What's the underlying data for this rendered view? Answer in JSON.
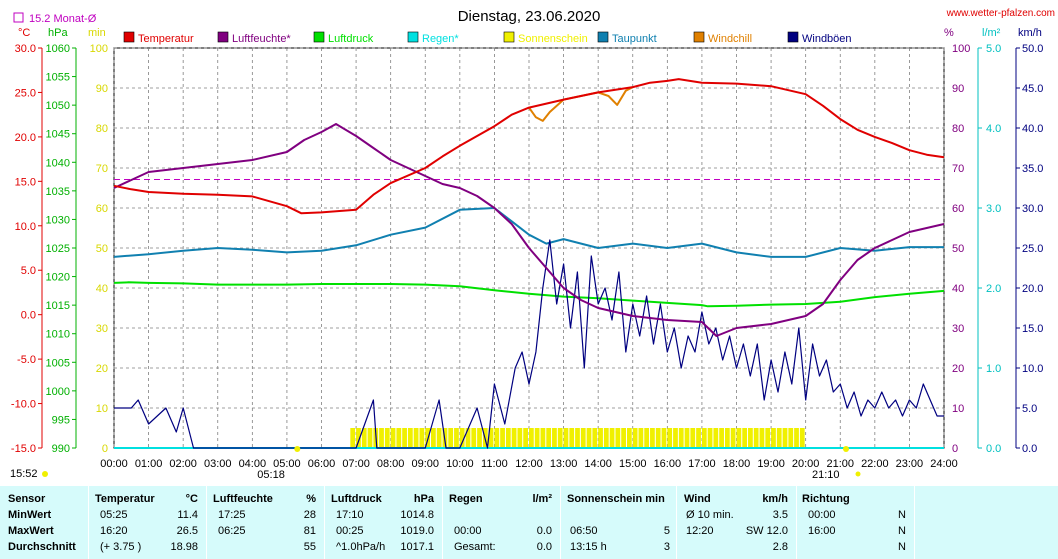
{
  "header": {
    "title": "Dienstag, 23.06.2020",
    "website": "www.wetter-pfalzen.com",
    "monthly_avg_label": "15.2 Monat-Ø",
    "unit_c": "°C",
    "unit_hpa": "hPa",
    "unit_min": "min",
    "unit_pct": "%",
    "unit_lm2": "l/m²",
    "unit_kmh": "km/h"
  },
  "legend": [
    {
      "label": "Temperatur",
      "color": "#e00000"
    },
    {
      "label": "Luftfeuchte*",
      "color": "#800080"
    },
    {
      "label": "Luftdruck",
      "color": "#00e000"
    },
    {
      "label": "Regen*",
      "color": "#00e0e0"
    },
    {
      "label": "Sonnenschein",
      "color": "#f0f000"
    },
    {
      "label": "Taupunkt",
      "color": "#1080b0"
    },
    {
      "label": "Windchill",
      "color": "#e08000"
    },
    {
      "label": "Windböen",
      "color": "#000080"
    }
  ],
  "axis_labels": {
    "temp": [
      "30.0",
      "25.0",
      "20.0",
      "15.0",
      "10.0",
      "5.0",
      "0.0",
      "-5.0",
      "-10.0",
      "-15.0"
    ],
    "press": [
      "1060",
      "1055",
      "1050",
      "1045",
      "1040",
      "1035",
      "1030",
      "1025",
      "1020",
      "1015",
      "1010",
      "1005",
      "1000",
      "995",
      "990"
    ],
    "sun": [
      "100",
      "90",
      "80",
      "70",
      "60",
      "50",
      "40",
      "30",
      "20",
      "10",
      "0"
    ],
    "hum": [
      "100",
      "90",
      "80",
      "70",
      "60",
      "50",
      "40",
      "30",
      "20",
      "10",
      "0"
    ],
    "rain": [
      "5.0",
      "4.0",
      "3.0",
      "2.0",
      "1.0",
      "0.0"
    ],
    "wind": [
      "50.0",
      "45.0",
      "40.0",
      "35.0",
      "30.0",
      "25.0",
      "20.0",
      "15.0",
      "10.0",
      "5.0",
      "0.0"
    ],
    "time": [
      "00:00",
      "01:00",
      "02:00",
      "03:00",
      "04:00",
      "05:00",
      "06:00",
      "07:00",
      "08:00",
      "09:00",
      "10:00",
      "11:00",
      "12:00",
      "13:00",
      "14:00",
      "15:00",
      "16:00",
      "17:00",
      "18:00",
      "19:00",
      "20:00",
      "21:00",
      "22:00",
      "23:00",
      "24:00"
    ]
  },
  "markers": {
    "now_time": "15:52",
    "sunrise": "05:18",
    "sunset": "21:10"
  },
  "stats": {
    "headers": {
      "sensor": "Sensor",
      "temperatur": "Temperatur",
      "temp_unit": "°C",
      "luftfeuchte": "Luftfeuchte",
      "hum_unit": "%",
      "luftdruck": "Luftdruck",
      "press_unit": "hPa",
      "regen": "Regen",
      "rain_unit": "l/m²",
      "sonnenschein": "Sonnenschein min",
      "wind": "Wind",
      "wind_unit": "km/h",
      "richtung": "Richtung"
    },
    "rows": [
      {
        "label": "MinWert",
        "t_time": "05:25",
        "t_val": "11.4",
        "h_time": "17:25",
        "h_val": "28",
        "p_time": "17:10",
        "p_val": "1014.8",
        "r_time": "",
        "r_val": "",
        "s_time": "",
        "s_val": "",
        "w_time": "Ø 10 min.",
        "w_val": "3.5",
        "d_time": "00:00",
        "d_val": "N"
      },
      {
        "label": "MaxWert",
        "t_time": "16:20",
        "t_val": "26.5",
        "h_time": "06:25",
        "h_val": "81",
        "p_time": "00:25",
        "p_val": "1019.0",
        "r_time": "00:00",
        "r_val": "0.0",
        "s_time": "06:50",
        "s_val": "5",
        "w_time": "12:20",
        "w_val": "SW 12.0",
        "d_time": "16:00",
        "d_val": "N"
      },
      {
        "label": "Durchschnitt",
        "t_time": "(+ 3.75 )",
        "t_val": "18.98",
        "h_time": "",
        "h_val": "55",
        "p_time": "^1.0hPa/h",
        "p_val": "1017.1",
        "r_time": "Gesamt:",
        "r_val": "0.0",
        "s_time": "13:15 h",
        "s_val": "3",
        "w_time": "",
        "w_val": "2.8",
        "d_time": "",
        "d_val": "N"
      }
    ]
  },
  "chart_data": {
    "type": "line",
    "title": "Dienstag, 23.06.2020",
    "x_range": [
      "00:00",
      "24:00"
    ],
    "axes": {
      "temperature_c": [
        -15,
        30
      ],
      "pressure_hpa": [
        990,
        1060
      ],
      "sunshine_min": [
        0,
        100
      ],
      "humidity_pct": [
        0,
        100
      ],
      "rain_lm2": [
        0,
        5
      ],
      "wind_kmh": [
        0,
        50
      ]
    },
    "reference_lines": [
      {
        "name": "15.2 Monat-Ø",
        "axis": "temperature_c",
        "value": 15.2,
        "style": "dashed",
        "color": "#c000c0"
      }
    ],
    "series": [
      {
        "name": "Temperatur",
        "axis": "temperature_c",
        "color": "#e00000",
        "points": [
          [
            0,
            14.5
          ],
          [
            0.5,
            14.1
          ],
          [
            1,
            13.8
          ],
          [
            2,
            13.6
          ],
          [
            3,
            13.5
          ],
          [
            4,
            13.3
          ],
          [
            5,
            12.2
          ],
          [
            5.42,
            11.4
          ],
          [
            6,
            11.5
          ],
          [
            7,
            11.8
          ],
          [
            7.5,
            13.5
          ],
          [
            8,
            14.8
          ],
          [
            9,
            16.5
          ],
          [
            9.5,
            17.8
          ],
          [
            10,
            19
          ],
          [
            11,
            21.2
          ],
          [
            11.5,
            22.5
          ],
          [
            12,
            23.3
          ],
          [
            13,
            24.2
          ],
          [
            14,
            25
          ],
          [
            15,
            25.6
          ],
          [
            15.5,
            26.1
          ],
          [
            16,
            26.3
          ],
          [
            16.33,
            26.5
          ],
          [
            17,
            26.1
          ],
          [
            18,
            26
          ],
          [
            19,
            25.7
          ],
          [
            20,
            24.8
          ],
          [
            20.5,
            23.5
          ],
          [
            21,
            22
          ],
          [
            21.5,
            20.8
          ],
          [
            22,
            20
          ],
          [
            22.5,
            19.3
          ],
          [
            23,
            18.5
          ],
          [
            23.5,
            18
          ],
          [
            24,
            17.7
          ]
        ]
      },
      {
        "name": "Luftfeuchte*",
        "axis": "humidity_pct",
        "color": "#800080",
        "points": [
          [
            0,
            65
          ],
          [
            0.5,
            67
          ],
          [
            1,
            69
          ],
          [
            2,
            70
          ],
          [
            3,
            71
          ],
          [
            4,
            72
          ],
          [
            5,
            74
          ],
          [
            5.5,
            77
          ],
          [
            6,
            79
          ],
          [
            6.42,
            81
          ],
          [
            7,
            78
          ],
          [
            7.5,
            75
          ],
          [
            8,
            72
          ],
          [
            9,
            68
          ],
          [
            9.5,
            66
          ],
          [
            10,
            65
          ],
          [
            10.5,
            63
          ],
          [
            11,
            60
          ],
          [
            11.5,
            56
          ],
          [
            12,
            50
          ],
          [
            12.5,
            45
          ],
          [
            13,
            40
          ],
          [
            13.5,
            37
          ],
          [
            14,
            35
          ],
          [
            14.5,
            34
          ],
          [
            15,
            33
          ],
          [
            16,
            32
          ],
          [
            17,
            31.5
          ],
          [
            17.42,
            28
          ],
          [
            18,
            30
          ],
          [
            19,
            31
          ],
          [
            19.5,
            32
          ],
          [
            20,
            33
          ],
          [
            20.5,
            36
          ],
          [
            21,
            42
          ],
          [
            21.5,
            47
          ],
          [
            22,
            50
          ],
          [
            22.5,
            52
          ],
          [
            23,
            54
          ],
          [
            23.5,
            55
          ],
          [
            24,
            56
          ]
        ]
      },
      {
        "name": "Luftdruck",
        "axis": "pressure_hpa",
        "color": "#00e000",
        "points": [
          [
            0,
            1018.9
          ],
          [
            0.42,
            1019
          ],
          [
            1,
            1018.9
          ],
          [
            2,
            1018.8
          ],
          [
            3,
            1018.6
          ],
          [
            4,
            1018.6
          ],
          [
            5,
            1018.6
          ],
          [
            6,
            1018.7
          ],
          [
            7,
            1018.7
          ],
          [
            8,
            1018.7
          ],
          [
            9,
            1018.6
          ],
          [
            10,
            1018.3
          ],
          [
            11,
            1017.6
          ],
          [
            12,
            1017
          ],
          [
            13,
            1016.5
          ],
          [
            14,
            1016.2
          ],
          [
            15,
            1015.8
          ],
          [
            16,
            1015.4
          ],
          [
            17,
            1015
          ],
          [
            17.17,
            1014.8
          ],
          [
            18,
            1014.9
          ],
          [
            19,
            1015.1
          ],
          [
            20,
            1015.2
          ],
          [
            21,
            1015.6
          ],
          [
            22,
            1016.4
          ],
          [
            23,
            1017
          ],
          [
            24,
            1017.5
          ]
        ]
      },
      {
        "name": "Taupunkt",
        "axis": "temperature_c",
        "color": "#1080b0",
        "points": [
          [
            0,
            6.5
          ],
          [
            1,
            6.8
          ],
          [
            2,
            7.2
          ],
          [
            3,
            7.5
          ],
          [
            4,
            7.3
          ],
          [
            5,
            7
          ],
          [
            6,
            7.2
          ],
          [
            7,
            7.8
          ],
          [
            8,
            9
          ],
          [
            9,
            9.8
          ],
          [
            10,
            11.8
          ],
          [
            11,
            12
          ],
          [
            11.5,
            10.5
          ],
          [
            12,
            9
          ],
          [
            12.5,
            8
          ],
          [
            13,
            8.5
          ],
          [
            14,
            7.5
          ],
          [
            15,
            8
          ],
          [
            16,
            7.5
          ],
          [
            17,
            8
          ],
          [
            18,
            7
          ],
          [
            19,
            6.5
          ],
          [
            20,
            6.5
          ],
          [
            21,
            7.5
          ],
          [
            22,
            7.2
          ],
          [
            23,
            7.6
          ],
          [
            24,
            7.6
          ]
        ]
      },
      {
        "name": "Windchill",
        "axis": "temperature_c",
        "color": "#e08000",
        "points": [
          [
            12,
            23.3
          ],
          [
            12.2,
            22.2
          ],
          [
            12.4,
            21.8
          ],
          [
            12.6,
            22.8
          ],
          [
            13,
            24.2
          ],
          [
            14,
            25
          ],
          [
            14.3,
            24.6
          ],
          [
            14.55,
            23.6
          ],
          [
            14.8,
            25.2
          ],
          [
            15,
            25.6
          ]
        ]
      },
      {
        "name": "Windböen",
        "axis": "wind_kmh",
        "color": "#000080",
        "points": [
          [
            0,
            5
          ],
          [
            0.5,
            5
          ],
          [
            0.7,
            6
          ],
          [
            1,
            3
          ],
          [
            1.5,
            5
          ],
          [
            1.8,
            2
          ],
          [
            2,
            5
          ],
          [
            2.3,
            0
          ],
          [
            5,
            0
          ],
          [
            7,
            0
          ],
          [
            7.5,
            6
          ],
          [
            7.6,
            0
          ],
          [
            9,
            0
          ],
          [
            9.4,
            6
          ],
          [
            9.6,
            0
          ],
          [
            10,
            0
          ],
          [
            10.5,
            5
          ],
          [
            10.8,
            0
          ],
          [
            11,
            8
          ],
          [
            11.3,
            3
          ],
          [
            11.6,
            10
          ],
          [
            11.8,
            12
          ],
          [
            12,
            8
          ],
          [
            12.2,
            12
          ],
          [
            12.4,
            20
          ],
          [
            12.6,
            26
          ],
          [
            12.8,
            18
          ],
          [
            13,
            23
          ],
          [
            13.2,
            15
          ],
          [
            13.4,
            22
          ],
          [
            13.6,
            10
          ],
          [
            13.8,
            24
          ],
          [
            14,
            18
          ],
          [
            14.2,
            20
          ],
          [
            14.4,
            16
          ],
          [
            14.6,
            22
          ],
          [
            14.8,
            12
          ],
          [
            15,
            18
          ],
          [
            15.2,
            14
          ],
          [
            15.4,
            19
          ],
          [
            15.6,
            13
          ],
          [
            15.8,
            18
          ],
          [
            16,
            12
          ],
          [
            16.2,
            15
          ],
          [
            16.4,
            10
          ],
          [
            16.6,
            14
          ],
          [
            16.8,
            12
          ],
          [
            17,
            17
          ],
          [
            17.2,
            13
          ],
          [
            17.4,
            15
          ],
          [
            17.6,
            11
          ],
          [
            17.8,
            14
          ],
          [
            18,
            10
          ],
          [
            18.2,
            13
          ],
          [
            18.4,
            9
          ],
          [
            18.6,
            13
          ],
          [
            18.8,
            6
          ],
          [
            19,
            11
          ],
          [
            19.2,
            7
          ],
          [
            19.4,
            12
          ],
          [
            19.6,
            8
          ],
          [
            19.8,
            15
          ],
          [
            20,
            6
          ],
          [
            20.2,
            13
          ],
          [
            20.4,
            9
          ],
          [
            20.6,
            11
          ],
          [
            20.8,
            7
          ],
          [
            21,
            8
          ],
          [
            21.2,
            5
          ],
          [
            21.4,
            7
          ],
          [
            21.6,
            4
          ],
          [
            21.8,
            6
          ],
          [
            22,
            5
          ],
          [
            22.2,
            7
          ],
          [
            22.4,
            5
          ],
          [
            22.6,
            6
          ],
          [
            22.8,
            4
          ],
          [
            23,
            6
          ],
          [
            23.2,
            5
          ],
          [
            23.4,
            8
          ],
          [
            23.6,
            6
          ],
          [
            23.8,
            4
          ],
          [
            24,
            4
          ]
        ]
      },
      {
        "name": "Regen*",
        "axis": "rain_lm2",
        "color": "#00e0e0",
        "points": [
          [
            0,
            0
          ],
          [
            24,
            0
          ]
        ]
      }
    ],
    "sunshine_bars": {
      "name": "Sonnenschein",
      "axis": "sunshine_min",
      "color": "#f0f000",
      "start": "06:50",
      "end": "20:00",
      "value": 5
    }
  }
}
